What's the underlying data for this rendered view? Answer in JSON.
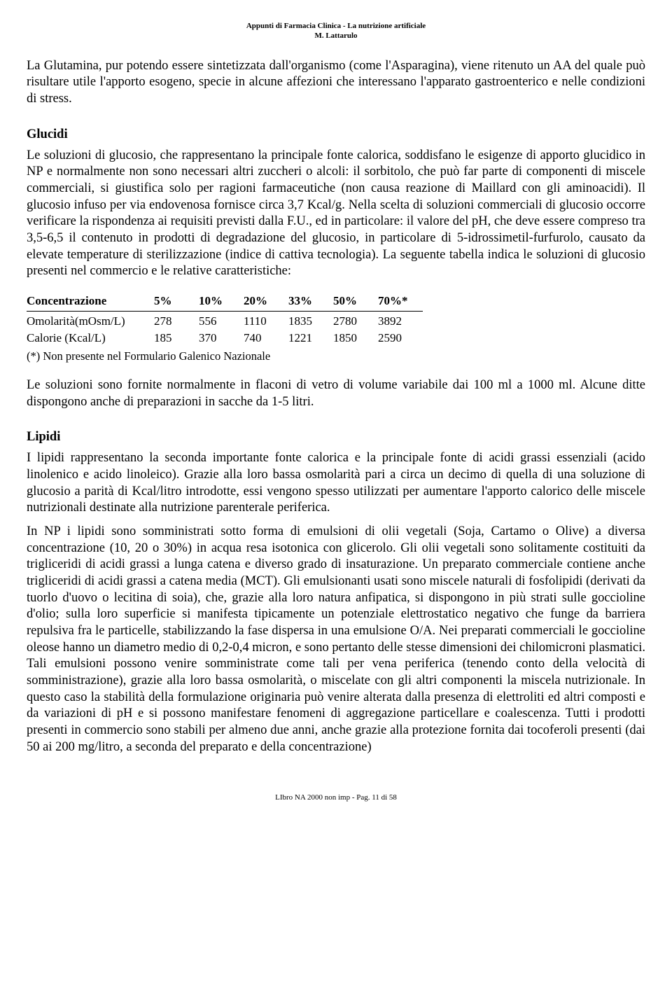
{
  "header": {
    "line1": "Appunti di Farmacia Clinica - La nutrizione artificiale",
    "line2": "M. Lattarulo"
  },
  "paragraphs": {
    "intro": "La Glutamina, pur potendo essere sintetizzata dall'organismo (come l'Asparagina), viene ritenuto un AA del quale può risultare utile l'apporto esogeno, specie in alcune affezioni che interessano l'apparato gastroenterico e nelle condizioni di stress."
  },
  "glucidi": {
    "heading": "Glucidi",
    "body": "Le soluzioni di glucosio, che rappresentano la principale fonte calorica, soddisfano le esigenze di apporto glucidico in NP e normalmente non sono necessari altri zuccheri o alcoli: il sorbitolo, che può far parte di componenti di miscele commerciali, si giustifica solo per ragioni farmaceutiche (non causa reazione di Maillard con gli aminoacidi). Il glucosio infuso per via endovenosa fornisce circa 3,7 Kcal/g. Nella scelta di soluzioni commerciali di glucosio occorre verificare la rispondenza ai requisiti previsti dalla F.U., ed in particolare: il valore del pH, che deve essere compreso tra 3,5-6,5 il contenuto in prodotti di degradazione del glucosio, in particolare di 5-idrossimetil-furfurolo, causato da elevate temperature di sterilizzazione (indice di cattiva tecnologia). La seguente tabella indica le soluzioni di glucosio presenti nel commercio e le relative caratteristiche:"
  },
  "table": {
    "header_label": "Concentrazione",
    "columns": [
      "5%",
      "10%",
      "20%",
      "33%",
      "50%",
      "70%*"
    ],
    "rows": [
      {
        "label": "Omolarità(mOsm/L)",
        "values": [
          "278",
          "556",
          "1110",
          "1835",
          "2780",
          "3892"
        ]
      },
      {
        "label": "Calorie (Kcal/L)",
        "values": [
          "185",
          "370",
          "740",
          "1221",
          "1850",
          "2590"
        ]
      }
    ],
    "note": "(*) Non presente nel Formulario Galenico Nazionale"
  },
  "after_table": "Le soluzioni sono fornite normalmente in flaconi di vetro di volume variabile dai 100 ml a 1000 ml. Alcune ditte dispongono anche di preparazioni in sacche da 1-5 litri.",
  "lipidi": {
    "heading": "Lipidi",
    "p1": "I lipidi rappresentano la seconda importante fonte calorica e la principale fonte di acidi grassi essenziali (acido linolenico e acido linoleico). Grazie alla loro bassa osmolarità pari a circa un decimo di quella di una soluzione di glucosio a parità di Kcal/litro introdotte, essi vengono spesso utilizzati per aumentare l'apporto calorico delle miscele nutrizionali destinate alla nutrizione parenterale periferica.",
    "p2": "In NP i lipidi sono somministrati sotto forma di emulsioni di olii vegetali (Soja, Cartamo o Olive) a diversa concentrazione (10, 20 o 30%) in acqua resa isotonica con glicerolo. Gli olii vegetali sono solitamente costituiti da trigliceridi di acidi grassi a lunga catena e diverso grado di insaturazione. Un preparato commerciale contiene anche trigliceridi di acidi grassi a catena media (MCT). Gli emulsionanti usati sono miscele naturali di fosfolipidi (derivati da tuorlo d'uovo o lecitina di soia), che, grazie alla loro natura anfipatica, si dispongono in più strati sulle goccioline d'olio; sulla loro superficie si manifesta tipicamente un potenziale elettrostatico negativo che funge da barriera repulsiva fra le particelle, stabilizzando la fase dispersa in una emulsione O/A. Nei preparati commerciali le goccioline oleose hanno un diametro medio di 0,2-0,4 micron, e sono pertanto delle stesse dimensioni dei chilomicroni plasmatici. Tali emulsioni possono venire somministrate come tali per vena periferica (tenendo conto della velocità di somministrazione), grazie alla loro bassa osmolarità, o miscelate con gli altri componenti la miscela nutrizionale. In questo caso la stabilità della formulazione originaria può venire alterata dalla presenza di elettroliti ed altri composti e da variazioni di pH e si possono manifestare fenomeni di aggregazione particellare e coalescenza. Tutti i prodotti presenti in commercio sono stabili per almeno due anni, anche grazie alla protezione fornita dai tocoferoli presenti (dai 50 ai 200 mg/litro, a seconda del preparato e della concentrazione)"
  },
  "footer": "LIbro NA 2000 non imp  -  Pag. 11 di 58"
}
